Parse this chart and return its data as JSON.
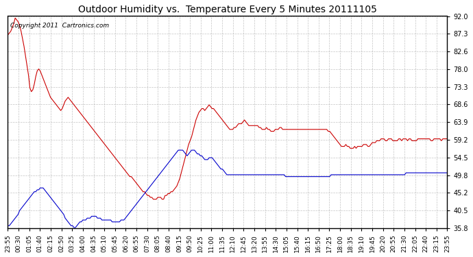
{
  "title": "Outdoor Humidity vs.  Temperature Every 5 Minutes 20111105",
  "copyright_text": "Copyright 2011  Cartronics.com",
  "y_ticks": [
    35.8,
    40.5,
    45.2,
    49.8,
    54.5,
    59.2,
    63.9,
    68.6,
    73.3,
    78.0,
    82.6,
    87.3,
    92.0
  ],
  "x_labels": [
    "23:55",
    "00:30",
    "01:05",
    "01:40",
    "02:15",
    "02:50",
    "03:25",
    "04:00",
    "04:35",
    "05:10",
    "05:45",
    "06:20",
    "06:55",
    "07:30",
    "08:05",
    "08:40",
    "09:15",
    "09:50",
    "10:25",
    "11:00",
    "11:35",
    "12:10",
    "12:45",
    "13:20",
    "13:55",
    "14:30",
    "15:05",
    "15:40",
    "16:15",
    "16:50",
    "17:25",
    "18:00",
    "18:35",
    "19:10",
    "19:45",
    "20:20",
    "20:55",
    "21:30",
    "22:05",
    "22:40",
    "23:15",
    "23:55"
  ],
  "background_color": "#ffffff",
  "plot_bg_color": "#ffffff",
  "grid_color": "#aaaaaa",
  "title_color": "#000000",
  "red_color": "#cc0000",
  "blue_color": "#0000cc",
  "red_data": [
    87.0,
    87.5,
    88.0,
    89.0,
    90.0,
    91.5,
    91.0,
    90.5,
    89.5,
    88.0,
    86.0,
    84.0,
    81.5,
    79.0,
    76.5,
    73.0,
    72.0,
    72.5,
    74.0,
    76.0,
    77.5,
    78.0,
    77.5,
    76.5,
    75.5,
    74.5,
    73.5,
    72.5,
    71.5,
    70.5,
    70.0,
    69.5,
    69.0,
    68.5,
    68.0,
    67.5,
    67.0,
    67.5,
    68.5,
    69.5,
    70.0,
    70.5,
    70.0,
    69.5,
    69.0,
    68.5,
    68.0,
    67.5,
    67.0,
    66.5,
    66.0,
    65.5,
    65.0,
    64.5,
    64.0,
    63.5,
    63.0,
    62.5,
    62.0,
    61.5,
    61.0,
    60.5,
    60.0,
    59.5,
    59.0,
    58.5,
    58.0,
    57.5,
    57.0,
    56.5,
    56.0,
    55.5,
    55.0,
    54.5,
    54.0,
    53.5,
    53.0,
    52.5,
    52.0,
    51.5,
    51.0,
    50.5,
    50.0,
    49.5,
    49.5,
    49.0,
    48.5,
    48.0,
    47.5,
    47.0,
    46.5,
    46.0,
    45.5,
    45.5,
    45.0,
    44.5,
    44.5,
    44.0,
    44.0,
    43.5,
    43.5,
    43.5,
    44.0,
    44.0,
    44.0,
    43.5,
    43.5,
    44.5,
    44.5,
    45.0,
    45.0,
    45.5,
    45.5,
    46.0,
    46.5,
    47.0,
    48.0,
    49.0,
    50.5,
    52.0,
    53.5,
    55.0,
    56.5,
    58.0,
    59.0,
    60.0,
    61.5,
    63.0,
    64.5,
    65.5,
    66.5,
    67.0,
    67.5,
    67.5,
    67.0,
    67.5,
    68.0,
    68.5,
    68.0,
    67.5,
    67.5,
    67.0,
    66.5,
    66.0,
    65.5,
    65.0,
    64.5,
    64.0,
    63.5,
    63.0,
    62.5,
    62.0,
    62.0,
    62.0,
    62.5,
    62.5,
    63.0,
    63.5,
    63.5,
    63.5,
    64.0,
    64.5,
    64.0,
    63.5,
    63.0,
    63.0,
    63.0,
    63.0,
    63.0,
    63.0,
    63.0,
    62.5,
    62.5,
    62.0,
    62.0,
    62.0,
    62.5,
    62.0,
    62.0,
    61.5,
    61.5,
    61.5,
    62.0,
    62.0,
    62.0,
    62.5,
    62.5,
    62.0,
    62.0,
    62.0,
    62.0,
    62.0,
    62.0,
    62.0,
    62.0,
    62.0,
    62.0,
    62.0,
    62.0,
    62.0,
    62.0,
    62.0,
    62.0,
    62.0,
    62.0,
    62.0,
    62.0,
    62.0,
    62.0,
    62.0,
    62.0,
    62.0,
    62.0,
    62.0,
    62.0,
    62.0,
    62.0,
    62.0,
    61.5,
    61.5,
    61.0,
    60.5,
    60.0,
    59.5,
    59.0,
    58.5,
    58.0,
    57.5,
    57.5,
    57.5,
    58.0,
    57.5,
    57.5,
    57.0,
    57.0,
    57.0,
    57.5,
    57.0,
    57.5,
    57.5,
    57.5,
    57.5,
    58.0,
    58.0,
    58.0,
    57.5,
    57.5,
    58.0,
    58.5,
    58.5,
    58.5,
    59.0,
    59.0,
    59.0,
    59.5,
    59.5,
    59.5,
    59.0,
    59.0,
    59.5,
    59.5,
    59.5,
    59.0,
    59.0,
    59.0,
    59.0,
    59.5,
    59.5,
    59.0,
    59.5,
    59.5,
    59.5,
    59.0,
    59.5,
    59.5,
    59.0,
    59.0,
    59.0,
    59.0,
    59.5,
    59.5,
    59.5,
    59.5,
    59.5,
    59.5,
    59.5,
    59.5,
    59.5,
    59.0,
    59.0,
    59.5,
    59.5,
    59.5,
    59.5,
    59.5,
    59.0,
    59.5,
    59.5,
    59.5,
    59.5
  ],
  "blue_data": [
    36.5,
    36.5,
    37.0,
    37.5,
    38.0,
    38.5,
    39.0,
    39.5,
    40.5,
    41.0,
    41.5,
    42.0,
    42.5,
    43.0,
    43.5,
    44.0,
    44.5,
    45.0,
    45.5,
    45.5,
    46.0,
    46.0,
    46.5,
    46.5,
    46.5,
    46.0,
    45.5,
    45.0,
    44.5,
    44.0,
    43.5,
    43.0,
    42.5,
    42.0,
    41.5,
    41.0,
    40.5,
    40.0,
    39.5,
    38.5,
    38.0,
    37.5,
    37.0,
    36.5,
    36.5,
    36.0,
    36.0,
    36.5,
    37.0,
    37.5,
    37.5,
    38.0,
    38.0,
    38.0,
    38.5,
    38.5,
    38.5,
    39.0,
    39.0,
    39.0,
    39.0,
    38.5,
    38.5,
    38.5,
    38.0,
    38.0,
    38.0,
    38.0,
    38.0,
    38.0,
    38.0,
    37.5,
    37.5,
    37.5,
    37.5,
    37.5,
    37.5,
    38.0,
    38.0,
    38.0,
    38.5,
    39.0,
    39.5,
    40.0,
    40.5,
    41.0,
    41.5,
    42.0,
    42.5,
    43.0,
    43.5,
    44.0,
    44.5,
    45.0,
    45.5,
    46.0,
    46.5,
    47.0,
    47.5,
    48.0,
    48.5,
    49.0,
    49.5,
    50.0,
    50.5,
    51.0,
    51.5,
    52.0,
    52.5,
    53.0,
    53.5,
    54.0,
    54.5,
    55.0,
    55.5,
    56.0,
    56.5,
    56.5,
    56.5,
    56.5,
    56.0,
    55.5,
    55.0,
    55.5,
    56.0,
    56.5,
    56.5,
    56.5,
    56.0,
    55.5,
    55.5,
    55.0,
    55.0,
    54.5,
    54.0,
    54.0,
    54.0,
    54.5,
    54.5,
    54.5,
    54.0,
    53.5,
    53.0,
    52.5,
    52.0,
    51.5,
    51.5,
    51.0,
    50.5,
    50.0,
    50.0,
    50.0,
    50.0,
    50.0,
    50.0,
    50.0,
    50.0,
    50.0,
    50.0,
    50.0,
    50.0,
    50.0,
    50.0,
    50.0,
    50.0,
    50.0,
    50.0,
    50.0,
    50.0,
    50.0,
    50.0,
    50.0,
    50.0,
    50.0,
    50.0,
    50.0,
    50.0,
    50.0,
    50.0,
    50.0,
    50.0,
    50.0,
    50.0,
    50.0,
    50.0,
    50.0,
    50.0,
    50.0,
    50.0,
    49.5,
    49.5,
    49.5,
    49.5,
    49.5,
    49.5,
    49.5,
    49.5,
    49.5,
    49.5,
    49.5,
    49.5,
    49.5,
    49.5,
    49.5,
    49.5,
    49.5,
    49.5,
    49.5,
    49.5,
    49.5,
    49.5,
    49.5,
    49.5,
    49.5,
    49.5,
    49.5,
    49.5,
    49.5,
    49.5,
    49.5,
    50.0,
    50.0,
    50.0,
    50.0,
    50.0,
    50.0,
    50.0,
    50.0,
    50.0,
    50.0,
    50.0,
    50.0,
    50.0,
    50.0,
    50.0,
    50.0,
    50.0,
    50.0,
    50.0,
    50.0,
    50.0,
    50.0,
    50.0,
    50.0,
    50.0,
    50.0,
    50.0,
    50.0,
    50.0,
    50.0,
    50.0,
    50.0,
    50.0,
    50.0,
    50.0,
    50.0,
    50.0,
    50.0,
    50.0,
    50.0,
    50.0,
    50.0,
    50.0,
    50.0,
    50.0,
    50.0,
    50.0,
    50.0,
    50.0,
    50.0,
    50.0,
    50.5,
    50.5,
    50.5,
    50.5,
    50.5,
    50.5,
    50.5,
    50.5,
    50.5,
    50.5,
    50.5,
    50.5,
    50.5,
    50.5,
    50.5,
    50.5,
    50.5,
    50.5,
    50.5,
    50.5,
    50.5,
    50.5,
    50.5,
    50.5,
    50.5,
    50.5,
    50.5,
    50.5,
    50.5
  ]
}
